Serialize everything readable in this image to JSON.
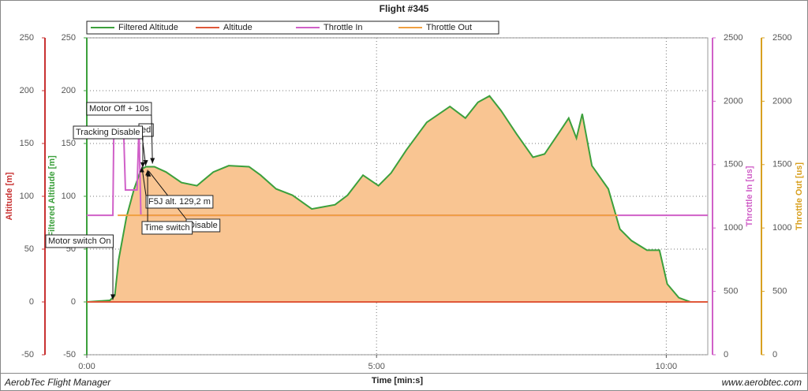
{
  "chart_data": {
    "type": "line",
    "title": "Flight #345",
    "xlabel": "Time [min:s]",
    "xlim": [
      0,
      643
    ],
    "xticks": [
      {
        "value": 0,
        "label": "0:00"
      },
      {
        "value": 300,
        "label": "5:00"
      },
      {
        "value": 600,
        "label": "10:00"
      }
    ],
    "ylabel": "Altitude [m]",
    "ycolor": "#c83232",
    "ylim": [
      -50,
      250
    ],
    "yticks": [
      -50,
      0,
      50,
      100,
      150,
      200,
      250
    ],
    "y2label": "Filtered Altitude [m]",
    "y2color": "#3ca03c",
    "y2lim": [
      -50,
      250
    ],
    "y2ticks": [
      -50,
      0,
      50,
      100,
      150,
      200,
      250
    ],
    "y3label": "Throttle In [us]",
    "y3color": "#d060c8",
    "y3lim": [
      0,
      2500
    ],
    "y3ticks": [
      0,
      500,
      1000,
      1500,
      2000,
      2500
    ],
    "y4label": "Throttle Out [us]",
    "y4color": "#d8a020",
    "y4lim": [
      0,
      2500
    ],
    "y4ticks": [
      0,
      500,
      1000,
      1500,
      2000,
      2500
    ],
    "grid": true,
    "legend": "top",
    "series": [
      {
        "name": "Filtered Altitude",
        "color": "#3ca03c",
        "fill": "#f9c592",
        "axis": "y2",
        "x": [
          0,
          24,
          29,
          33,
          41,
          49,
          56,
          61,
          70,
          82,
          98,
          114,
          131,
          147,
          168,
          180,
          196,
          213,
          233,
          245,
          257,
          270,
          286,
          302,
          315,
          331,
          352,
          376,
          392,
          405,
          417,
          429,
          445,
          462,
          474,
          491,
          499,
          507,
          513,
          523,
          540,
          552,
          564,
          580,
          593,
          601,
          613,
          625,
          643
        ],
        "values": [
          0,
          1.5,
          6,
          40,
          80,
          107,
          125,
          128,
          128,
          123,
          113,
          110,
          123,
          129,
          128,
          120,
          107,
          101,
          88,
          90,
          92,
          101,
          120,
          110,
          122,
          144,
          170,
          185,
          174,
          189,
          195,
          181,
          159,
          137,
          140,
          163,
          174,
          155,
          178,
          129,
          107,
          69,
          58,
          49,
          49,
          17,
          4,
          0,
          0
        ]
      },
      {
        "name": "Altitude",
        "color": "#e0583a",
        "axis": "y",
        "x": [
          0,
          643
        ],
        "values": [
          0,
          0
        ]
      },
      {
        "name": "Throttle In",
        "color": "#d060c8",
        "axis": "y3",
        "x": [
          0,
          27,
          28,
          38,
          40,
          52,
          54,
          56,
          643
        ],
        "values": [
          1100,
          1100,
          1800,
          1800,
          1300,
          1300,
          1800,
          1100,
          1100
        ]
      },
      {
        "name": "Throttle Out",
        "color": "#f0a040",
        "axis": "y4",
        "x": [
          32,
          550
        ],
        "values": [
          1100,
          1100
        ]
      }
    ],
    "annotations": [
      {
        "text": "ed",
        "x": 58,
        "y": 127
      },
      {
        "text": "Disable",
        "x": 64,
        "y": 124
      },
      {
        "text": "Motor switch On",
        "x": 27,
        "y": 2
      },
      {
        "text": "Tracking Disable",
        "x": 61,
        "y": 129
      },
      {
        "text": "Motor Off + 10s",
        "x": 68,
        "y": 131
      },
      {
        "text": "F5J alt. 129,2 m",
        "x": 57,
        "y": 128
      },
      {
        "text": "Time switch",
        "x": 63,
        "y": 125
      }
    ]
  },
  "footer": {
    "left": "AerobTec Flight Manager",
    "right": "www.aerobtec.com"
  }
}
